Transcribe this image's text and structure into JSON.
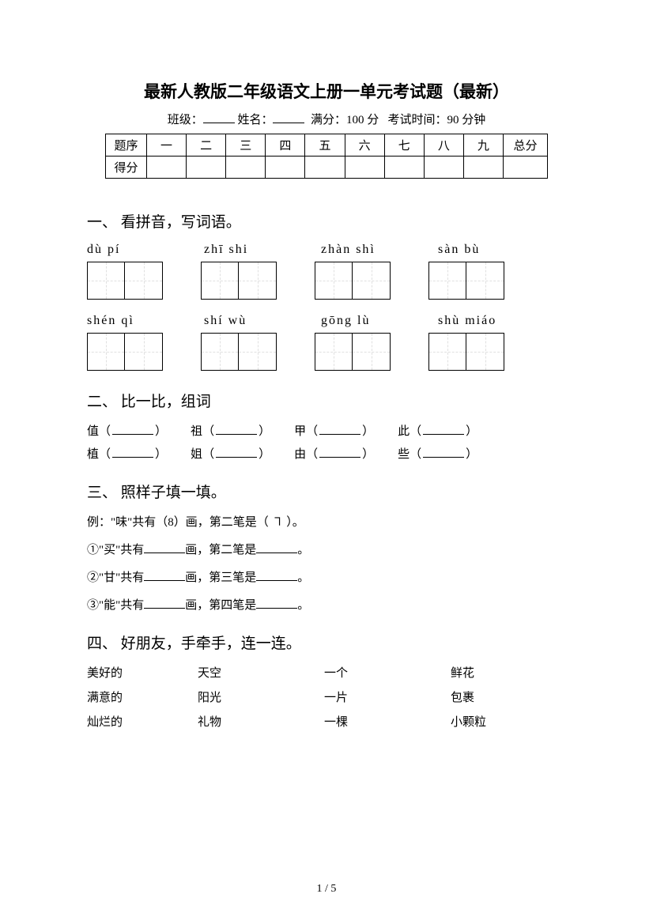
{
  "title": "最新人教版二年级语文上册一单元考试题（最新）",
  "meta": {
    "class_label": "班级：",
    "name_label": "姓名：",
    "full_score_label": "满分：",
    "full_score_value": "100 分",
    "time_label": "考试时间：",
    "time_value": "90 分钟"
  },
  "score_table": {
    "row1": [
      "题序",
      "一",
      "二",
      "三",
      "四",
      "五",
      "六",
      "七",
      "八",
      "九",
      "总分"
    ],
    "row2_label": "得分"
  },
  "section1": {
    "heading": "一、 看拼音，写词语。",
    "row1": [
      "dù  pí",
      "zhī  shi",
      "zhàn  shì",
      "sàn  bù"
    ],
    "row2": [
      "shén  qì",
      "shí  wù",
      "gōng  lù",
      "shù  miáo"
    ]
  },
  "section2": {
    "heading": "二、 比一比，组词",
    "row1": [
      "值",
      "祖",
      "甲",
      "此"
    ],
    "row2": [
      "植",
      "姐",
      "由",
      "些"
    ]
  },
  "section3": {
    "heading": "三、 照样子填一填。",
    "example": "例：\"味\"共有（8）画，第二笔是（ ㇕ ）。",
    "items": [
      {
        "prefix": "①\"买\"共有",
        "mid": "画，第二笔是",
        "suffix": "。"
      },
      {
        "prefix": "②\"甘\"共有",
        "mid": "画，第三笔是",
        "suffix": "。"
      },
      {
        "prefix": "③\"能\"共有",
        "mid": "画，第四笔是",
        "suffix": "。"
      }
    ]
  },
  "section4": {
    "heading": "四、 好朋友，手牵手，连一连。",
    "rows": [
      [
        "美好的",
        "天空",
        "一个",
        "鲜花"
      ],
      [
        "满意的",
        "阳光",
        "一片",
        "包裹"
      ],
      [
        "灿烂的",
        "礼物",
        "一棵",
        "小颗粒"
      ]
    ]
  },
  "page_num": "1 / 5",
  "colors": {
    "text": "#000000",
    "background": "#ffffff",
    "dash": "#888888"
  }
}
